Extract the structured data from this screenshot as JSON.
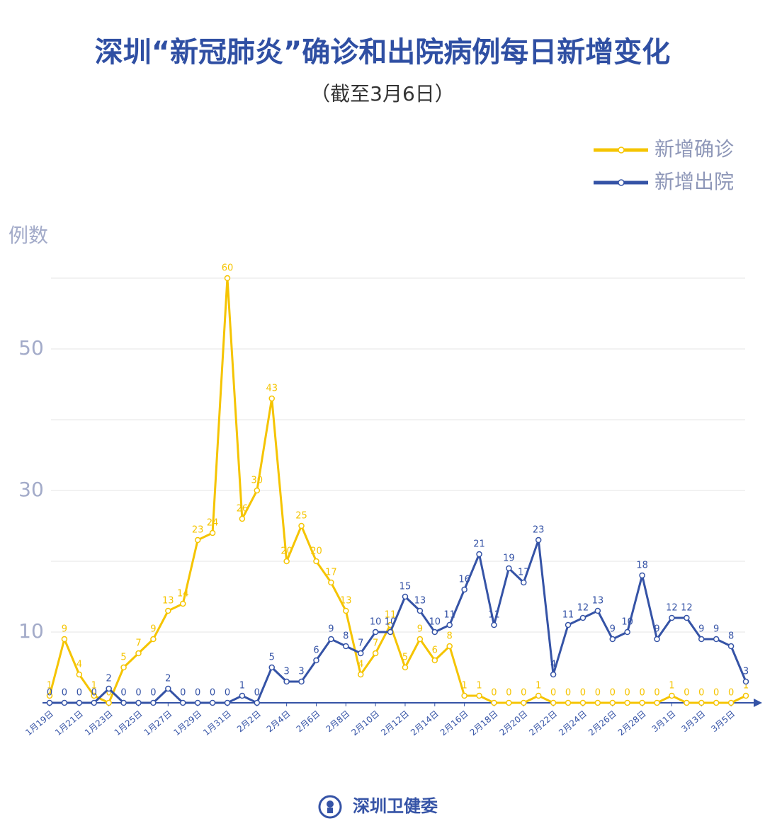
{
  "chart_data": {
    "type": "line",
    "title": "深圳“新冠肺炎”确诊和出院病例每日新增变化",
    "subtitle": "（截至3月6日）",
    "ylabel": "例数",
    "footer": "深圳卫健委",
    "categories": [
      "1月19日",
      null,
      "1月21日",
      null,
      "1月23日",
      null,
      "1月25日",
      null,
      "1月27日",
      null,
      "1月29日",
      null,
      "1月31日",
      null,
      "2月2日",
      null,
      "2月4日",
      null,
      "2月6日",
      null,
      "2月8日",
      null,
      "2月10日",
      null,
      "2月12日",
      null,
      "2月14日",
      null,
      "2月16日",
      null,
      "2月18日",
      null,
      "2月20日",
      null,
      "2月22日",
      null,
      "2月24日",
      null,
      "2月26日",
      null,
      "2月28日",
      null,
      "3月1日",
      null,
      "3月3日",
      null,
      "3月5日",
      null
    ],
    "series": [
      {
        "name": "新增确诊",
        "color": "#f5c400",
        "values": [
          1,
          9,
          4,
          1,
          0,
          5,
          7,
          9,
          13,
          14,
          23,
          24,
          60,
          26,
          30,
          43,
          20,
          25,
          20,
          17,
          13,
          4,
          7,
          11,
          5,
          9,
          6,
          8,
          1,
          1,
          0,
          0,
          0,
          1,
          0,
          0,
          0,
          0,
          0,
          0,
          0,
          0,
          1,
          0,
          0,
          0,
          0,
          1
        ]
      },
      {
        "name": "新增出院",
        "color": "#3553a6",
        "values": [
          0,
          0,
          0,
          0,
          2,
          0,
          0,
          0,
          2,
          0,
          0,
          0,
          0,
          1,
          0,
          5,
          3,
          3,
          6,
          9,
          8,
          7,
          10,
          10,
          15,
          13,
          10,
          11,
          16,
          21,
          11,
          19,
          17,
          23,
          4,
          11,
          12,
          13,
          9,
          10,
          18,
          9,
          12,
          12,
          9,
          9,
          8,
          3
        ]
      }
    ],
    "ylim": [
      0,
      60
    ],
    "yticks": [
      10,
      30,
      50
    ],
    "minor_yticks": [
      20,
      40,
      60
    ],
    "grid": true,
    "legend": "top-right"
  }
}
